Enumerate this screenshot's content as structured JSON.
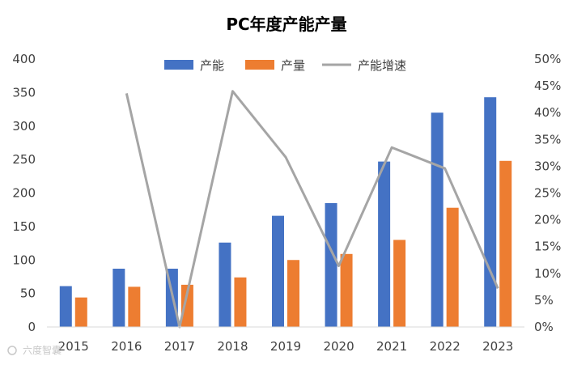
{
  "chart_data": {
    "type": "bar",
    "title": "PC年度产能产量",
    "categories": [
      "2015",
      "2016",
      "2017",
      "2018",
      "2019",
      "2020",
      "2021",
      "2022",
      "2023"
    ],
    "series": [
      {
        "name": "产能",
        "type": "bar",
        "axis": "left",
        "color": "#4472C4",
        "values": [
          61,
          87,
          87,
          126,
          166,
          185,
          247,
          320,
          343
        ]
      },
      {
        "name": "产量",
        "type": "bar",
        "axis": "left",
        "color": "#ED7D31",
        "values": [
          44,
          60,
          63,
          74,
          100,
          109,
          130,
          178,
          248
        ]
      },
      {
        "name": "产能增速",
        "type": "line",
        "axis": "right",
        "color": "#A5A5A5",
        "values": [
          null,
          43.6,
          0.0,
          44.0,
          31.7,
          11.4,
          33.5,
          29.6,
          7.2
        ]
      }
    ],
    "y_left": {
      "min": 0,
      "max": 400,
      "step": 50,
      "tick_labels": [
        "0",
        "50",
        "100",
        "150",
        "200",
        "250",
        "300",
        "350",
        "400"
      ]
    },
    "y_right": {
      "min": 0,
      "max": 50,
      "step": 5,
      "tick_labels": [
        "0%",
        "5%",
        "10%",
        "15%",
        "20%",
        "25%",
        "30%",
        "35%",
        "40%",
        "45%",
        "50%"
      ]
    },
    "grid": false,
    "legend_position": "top-center"
  },
  "watermark": "六度智囊"
}
